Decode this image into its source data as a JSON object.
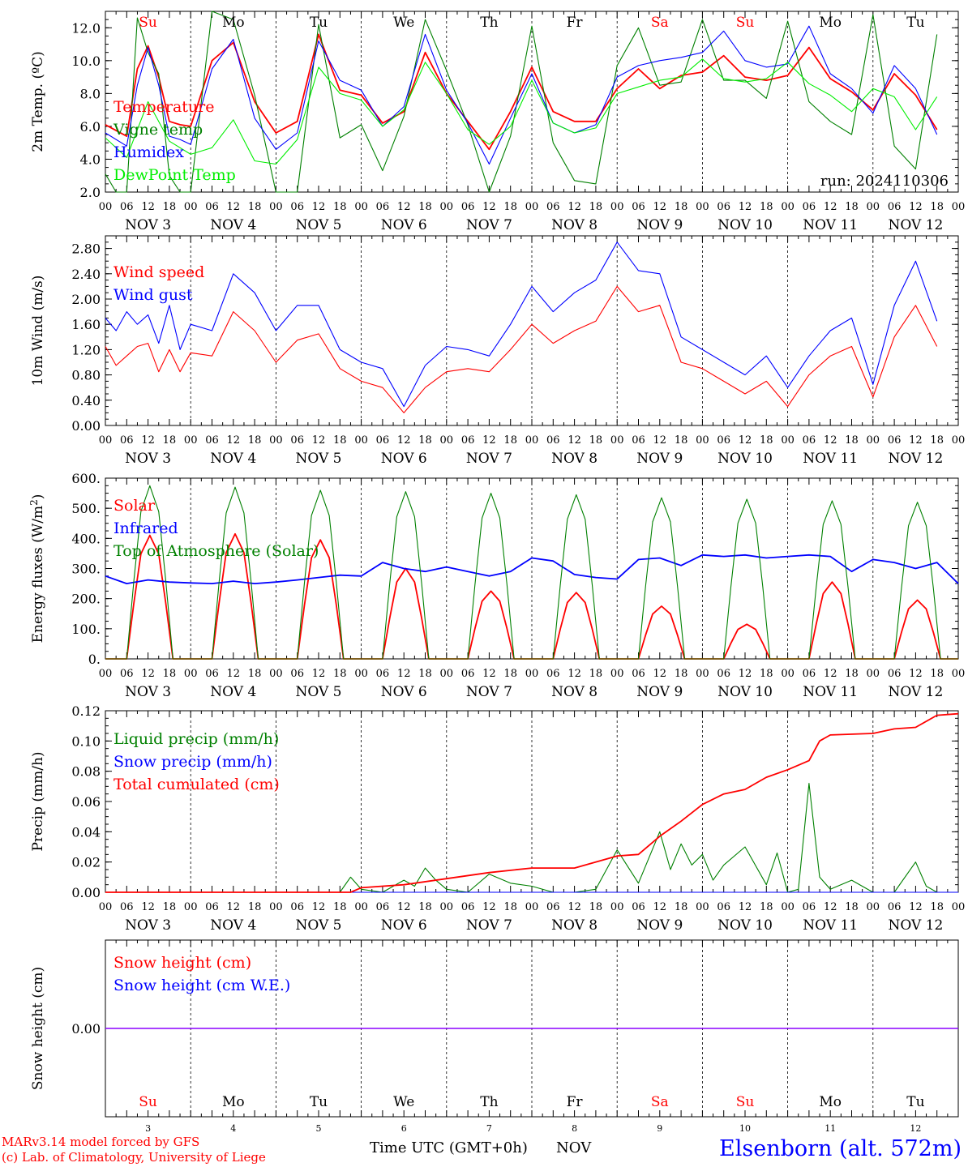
{
  "colors": {
    "red": "#ff0000",
    "green": "#008000",
    "blue": "#0000ff",
    "lightgreen": "#00ee00",
    "purple": "#8b00ff"
  },
  "footer": {
    "model_line": "MARv3.14 model forced by GFS",
    "lab_line": "(c) Lab. of Climatology, University of Liege",
    "time_axis_label": "Time UTC (GMT+0h)",
    "month": "NOV",
    "station": "Elsenborn (alt. 572m)"
  },
  "chart_data": {
    "type": "line",
    "hour_ticks": [
      "00",
      "06",
      "12",
      "18"
    ],
    "end_hour_tick": "00",
    "day_dates": [
      "NOV 3",
      "NOV 4",
      "NOV 5",
      "NOV 6",
      "NOV 7",
      "NOV 8",
      "NOV 9",
      "NOV 10",
      "NOV 11",
      "NOV 12"
    ],
    "day_abbrev": [
      "Su",
      "Mo",
      "Tu",
      "We",
      "Th",
      "Fr",
      "Sa",
      "Su",
      "Mo",
      "Tu"
    ],
    "day_numbers": [
      "3",
      "4",
      "5",
      "6",
      "7",
      "8",
      "9",
      "10",
      "11",
      "12"
    ],
    "weekend_days": [
      0,
      6,
      7
    ],
    "x_unit": "hours since 00 UTC NOV 3",
    "panels": [
      {
        "id": "temp",
        "ylabel": "2m Temp. (ºC)",
        "ylim": [
          2.0,
          13.0
        ],
        "yticks": [
          "2.0",
          "4.0",
          "6.0",
          "8.0",
          "10.0",
          "12.0"
        ],
        "run_label": "run: 2024110306",
        "series": [
          {
            "name": "Temperature",
            "color": "#ff0000",
            "x": [
              0,
              6,
              9,
              12,
              15,
              18,
              21,
              24,
              30,
              36,
              42,
              48,
              54,
              60,
              66,
              72,
              78,
              84,
              90,
              96,
              102,
              108,
              114,
              120,
              126,
              132,
              138,
              144,
              150,
              156,
              162,
              168,
              174,
              180,
              186,
              192,
              198,
              204,
              210,
              216,
              222,
              228,
              234
            ],
            "y": [
              6.1,
              5.4,
              9.5,
              10.9,
              9.0,
              6.3,
              6.1,
              6.0,
              10.0,
              11.1,
              7.5,
              5.6,
              6.3,
              11.6,
              8.2,
              7.9,
              6.2,
              6.9,
              10.5,
              8.0,
              6.3,
              4.6,
              6.9,
              9.6,
              6.9,
              6.3,
              6.3,
              8.3,
              9.5,
              8.3,
              9.1,
              9.3,
              10.3,
              9.0,
              8.8,
              9.1,
              10.8,
              8.9,
              8.1,
              7.0,
              9.2,
              7.9,
              5.8
            ]
          },
          {
            "name": "Vigne temp",
            "color": "#008000",
            "x": [
              0,
              3,
              6,
              9,
              12,
              15,
              18,
              21,
              24,
              30,
              36,
              42,
              48,
              54,
              60,
              66,
              72,
              78,
              84,
              90,
              96,
              102,
              108,
              114,
              120,
              126,
              132,
              138,
              144,
              150,
              156,
              162,
              168,
              174,
              180,
              186,
              192,
              198,
              204,
              210,
              216,
              222,
              228,
              234
            ],
            "y": [
              3.1,
              1.5,
              2.0,
              12.6,
              10.5,
              9.2,
              3.0,
              1.5,
              2.0,
              13.1,
              12.5,
              7.9,
              1.5,
              2.0,
              12.2,
              5.3,
              6.1,
              3.3,
              6.6,
              12.5,
              9.4,
              6.1,
              1.5,
              5.4,
              12.1,
              5.0,
              2.7,
              2.5,
              9.7,
              12.0,
              8.5,
              8.7,
              12.5,
              8.8,
              8.8,
              7.7,
              12.4,
              7.5,
              6.3,
              5.5,
              12.8,
              4.8,
              3.4,
              11.6
            ]
          },
          {
            "name": "Humidex",
            "color": "#0000ff",
            "x": [
              0,
              6,
              9,
              12,
              15,
              18,
              21,
              24,
              30,
              36,
              42,
              48,
              54,
              60,
              66,
              72,
              78,
              84,
              90,
              96,
              102,
              108,
              114,
              120,
              126,
              132,
              138,
              144,
              150,
              156,
              162,
              168,
              174,
              180,
              186,
              192,
              198,
              204,
              210,
              216,
              222,
              228,
              234
            ],
            "y": [
              5.6,
              4.8,
              8.5,
              10.8,
              8.5,
              5.4,
              5.2,
              4.9,
              9.5,
              11.3,
              6.5,
              4.6,
              5.6,
              11.2,
              8.8,
              8.2,
              6.0,
              7.2,
              11.6,
              8.2,
              6.2,
              3.7,
              6.5,
              9.2,
              6.2,
              5.6,
              6.1,
              9.0,
              9.7,
              10.0,
              10.2,
              10.5,
              11.8,
              10.0,
              9.6,
              9.8,
              12.1,
              9.2,
              8.3,
              6.8,
              9.7,
              8.3,
              5.5
            ]
          },
          {
            "name": "DewPoint Temp",
            "color": "#00ee00",
            "x": [
              0,
              6,
              12,
              18,
              24,
              30,
              36,
              42,
              48,
              54,
              60,
              66,
              72,
              78,
              84,
              90,
              96,
              102,
              108,
              114,
              120,
              126,
              132,
              138,
              144,
              150,
              156,
              162,
              168,
              174,
              180,
              186,
              192,
              198,
              204,
              210,
              216,
              222,
              228,
              234
            ],
            "y": [
              5.3,
              4.1,
              7.5,
              5.1,
              4.3,
              4.7,
              6.4,
              3.9,
              3.7,
              5.2,
              9.6,
              8.0,
              7.6,
              6.0,
              7.0,
              9.9,
              8.0,
              5.8,
              4.9,
              6.0,
              8.8,
              6.2,
              5.6,
              5.9,
              8.0,
              8.4,
              8.8,
              9.0,
              10.1,
              8.9,
              8.7,
              8.9,
              9.9,
              8.6,
              7.9,
              6.9,
              8.3,
              7.8,
              5.8,
              7.8
            ]
          }
        ]
      },
      {
        "id": "wind",
        "ylabel": "10m Wind (m/s)",
        "ylim": [
          0.0,
          3.0
        ],
        "yticks": [
          "0.00",
          "0.40",
          "0.80",
          "1.20",
          "1.60",
          "2.00",
          "2.40",
          "2.80"
        ],
        "series": [
          {
            "name": "Wind speed",
            "color": "#ff0000",
            "x": [
              0,
              3,
              6,
              9,
              12,
              15,
              18,
              21,
              24,
              30,
              36,
              42,
              48,
              54,
              60,
              66,
              72,
              78,
              84,
              90,
              96,
              102,
              108,
              114,
              120,
              126,
              132,
              138,
              144,
              150,
              156,
              162,
              168,
              174,
              180,
              186,
              192,
              198,
              204,
              210,
              216,
              222,
              228,
              234
            ],
            "y": [
              1.25,
              0.95,
              1.1,
              1.25,
              1.3,
              0.85,
              1.2,
              0.85,
              1.15,
              1.1,
              1.8,
              1.5,
              1.0,
              1.35,
              1.45,
              0.9,
              0.7,
              0.6,
              0.2,
              0.6,
              0.85,
              0.9,
              0.85,
              1.2,
              1.6,
              1.3,
              1.5,
              1.65,
              2.2,
              1.8,
              1.9,
              1.0,
              0.9,
              0.7,
              0.5,
              0.7,
              0.3,
              0.8,
              1.1,
              1.25,
              0.45,
              1.4,
              1.9,
              1.25
            ]
          },
          {
            "name": "Wind gust",
            "color": "#0000ff",
            "x": [
              0,
              3,
              6,
              9,
              12,
              15,
              18,
              21,
              24,
              30,
              36,
              42,
              48,
              54,
              60,
              66,
              72,
              78,
              84,
              90,
              96,
              102,
              108,
              114,
              120,
              126,
              132,
              138,
              144,
              150,
              156,
              162,
              168,
              174,
              180,
              186,
              192,
              198,
              204,
              210,
              216,
              222,
              228,
              234
            ],
            "y": [
              1.7,
              1.5,
              1.8,
              1.6,
              1.75,
              1.3,
              1.9,
              1.2,
              1.6,
              1.5,
              2.4,
              2.1,
              1.5,
              1.9,
              1.9,
              1.2,
              1.0,
              0.9,
              0.3,
              0.95,
              1.25,
              1.2,
              1.1,
              1.6,
              2.2,
              1.8,
              2.1,
              2.3,
              2.9,
              2.45,
              2.4,
              1.4,
              1.2,
              1.0,
              0.8,
              1.1,
              0.6,
              1.1,
              1.5,
              1.7,
              0.65,
              1.9,
              2.6,
              1.65
            ]
          }
        ]
      },
      {
        "id": "energy",
        "ylabel": "Energy fluxes (W/m²)",
        "ylim": [
          0,
          600
        ],
        "yticks": [
          "0.",
          "100.",
          "200.",
          "300.",
          "400.",
          "500.",
          "600."
        ],
        "series": [
          {
            "name": "Solar",
            "color": "#ff0000",
            "kind": "daily_peak",
            "peaks": [
              410,
              415,
              395,
              300,
              225,
              220,
              175,
              115,
              255,
              195
            ]
          },
          {
            "name": "Infrared",
            "color": "#0000ff",
            "x": [
              0,
              6,
              12,
              18,
              24,
              30,
              36,
              42,
              48,
              54,
              60,
              66,
              72,
              78,
              84,
              90,
              96,
              102,
              108,
              114,
              120,
              126,
              132,
              138,
              144,
              150,
              156,
              162,
              168,
              174,
              180,
              186,
              192,
              198,
              204,
              210,
              216,
              222,
              228,
              234,
              240
            ],
            "y": [
              275,
              250,
              262,
              255,
              252,
              250,
              258,
              250,
              255,
              262,
              270,
              278,
              275,
              320,
              300,
              290,
              305,
              290,
              275,
              290,
              335,
              325,
              280,
              270,
              265,
              330,
              335,
              310,
              345,
              340,
              345,
              335,
              340,
              345,
              340,
              290,
              330,
              320,
              300,
              320,
              250
            ]
          },
          {
            "name": "Top of Atmosphere (Solar)",
            "color": "#008000",
            "kind": "daily_peak",
            "peaks": [
              575,
              570,
              560,
              555,
              550,
              545,
              535,
              530,
              525,
              520
            ]
          }
        ]
      },
      {
        "id": "precip",
        "ylabel": "Precip (mm/h)",
        "ylim": [
          0.0,
          0.12
        ],
        "yticks": [
          "0.00",
          "0.02",
          "0.04",
          "0.06",
          "0.08",
          "0.10",
          "0.12"
        ],
        "series": [
          {
            "name": "Liquid precip (mm/h)",
            "color": "#008000",
            "x": [
              0,
              66,
              69,
              72,
              78,
              84,
              87,
              90,
              93,
              96,
              102,
              108,
              114,
              120,
              126,
              132,
              138,
              144,
              150,
              156,
              159,
              162,
              165,
              168,
              171,
              174,
              180,
              186,
              189,
              192,
              195,
              198,
              201,
              204,
              210,
              216,
              222,
              228,
              231,
              234,
              240
            ],
            "y": [
              0,
              0,
              0.01,
              0.002,
              0,
              0.008,
              0.004,
              0.016,
              0.008,
              0.002,
              0,
              0.012,
              0.006,
              0.004,
              0,
              0,
              0.002,
              0.028,
              0.006,
              0.04,
              0.015,
              0.032,
              0.018,
              0.025,
              0.008,
              0.018,
              0.03,
              0.005,
              0.026,
              0,
              0.002,
              0.072,
              0.01,
              0.002,
              0.008,
              0,
              0,
              0.02,
              0.004,
              0,
              0
            ]
          },
          {
            "name": "Snow precip (mm/h)",
            "color": "#0000ff",
            "x": [
              0,
              240
            ],
            "y": [
              0,
              0
            ]
          },
          {
            "name": "Total cumulated (cm)",
            "color": "#ff0000",
            "x": [
              0,
              69,
              72,
              84,
              96,
              108,
              120,
              132,
              144,
              150,
              156,
              162,
              168,
              174,
              180,
              186,
              192,
              198,
              201,
              204,
              216,
              222,
              228,
              234,
              240
            ],
            "y": [
              0,
              0,
              0.003,
              0.005,
              0.009,
              0.013,
              0.016,
              0.016,
              0.024,
              0.025,
              0.037,
              0.047,
              0.058,
              0.065,
              0.068,
              0.076,
              0.081,
              0.087,
              0.1,
              0.104,
              0.105,
              0.108,
              0.109,
              0.117,
              0.118
            ]
          }
        ]
      },
      {
        "id": "snow",
        "ylabel": "Snow height (cm)",
        "ylim": [
          -1,
          1
        ],
        "yticks": [
          "0.00"
        ],
        "series": [
          {
            "name": "Snow height (cm)",
            "color": "#ff0000",
            "x": [
              0,
              240
            ],
            "y": [
              0,
              0
            ]
          },
          {
            "name": "Snow height (cm W.E.)",
            "color": "#0000ff",
            "x": [
              0,
              240
            ],
            "y": [
              0,
              0
            ]
          }
        ]
      }
    ]
  }
}
